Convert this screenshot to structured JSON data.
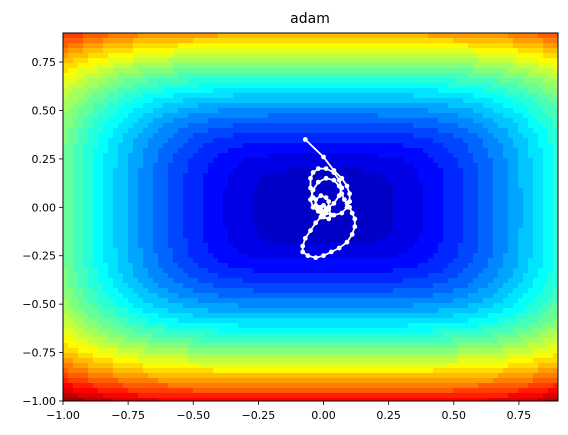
{
  "chart_data": {
    "type": "contour",
    "title": "adam",
    "xlabel": "",
    "ylabel": "",
    "xlim": [
      -1.0,
      0.9
    ],
    "ylim": [
      -1.0,
      0.9
    ],
    "xticks": [
      -1.0,
      -0.75,
      -0.5,
      -0.25,
      0.0,
      0.25,
      0.5,
      0.75
    ],
    "yticks": [
      -1.0,
      -0.75,
      -0.5,
      -0.25,
      0.0,
      0.25,
      0.5,
      0.75
    ],
    "xtick_labels": [
      "−1.00",
      "−0.75",
      "−0.50",
      "−0.25",
      "0.00",
      "0.25",
      "0.50",
      "0.75"
    ],
    "ytick_labels": [
      "−1.00",
      "−0.75",
      "−0.50",
      "−0.25",
      "0.00",
      "0.25",
      "0.50",
      "0.75"
    ],
    "colormap": "jet",
    "surface": "0.5*x^4 + 1.8*y^4 (qualitative loss surface)",
    "path_color": "#ffffff",
    "optimizer_path": {
      "x": [
        -0.07,
        0.0,
        0.04,
        0.07,
        0.09,
        0.1,
        0.1,
        0.09,
        0.07,
        0.04,
        0.01,
        -0.02,
        -0.04,
        -0.05,
        -0.05,
        -0.04,
        -0.02,
        0.01,
        0.04,
        0.06,
        0.07,
        0.06,
        0.04,
        0.01,
        -0.02,
        -0.04,
        -0.05,
        -0.04,
        -0.02,
        0.01,
        0.04,
        0.06,
        0.07,
        0.08,
        0.09,
        0.1,
        0.11,
        0.12,
        0.12,
        0.11,
        0.09,
        0.06,
        0.03,
        0.0,
        -0.03,
        -0.06,
        -0.08,
        -0.08,
        -0.07,
        -0.05,
        -0.03,
        -0.01,
        0.01,
        0.02,
        0.02,
        0.01,
        -0.01,
        -0.03,
        -0.03,
        -0.02,
        0.0,
        0.02,
        0.03,
        0.02,
        0.0,
        -0.01,
        -0.01,
        0.0,
        0.01
      ],
      "y": [
        0.35,
        0.26,
        0.19,
        0.15,
        0.11,
        0.07,
        0.03,
        0.0,
        -0.03,
        -0.04,
        -0.03,
        0.0,
        0.05,
        0.1,
        0.15,
        0.18,
        0.2,
        0.2,
        0.18,
        0.14,
        0.1,
        0.06,
        0.02,
        -0.01,
        -0.02,
        0.0,
        0.04,
        0.09,
        0.13,
        0.15,
        0.14,
        0.11,
        0.07,
        0.04,
        0.02,
        0.0,
        -0.03,
        -0.06,
        -0.1,
        -0.14,
        -0.18,
        -0.21,
        -0.23,
        -0.25,
        -0.26,
        -0.25,
        -0.23,
        -0.2,
        -0.16,
        -0.12,
        -0.08,
        -0.05,
        -0.02,
        0.0,
        0.03,
        0.05,
        0.06,
        0.04,
        0.01,
        -0.02,
        -0.05,
        -0.06,
        -0.04,
        -0.01,
        0.01,
        0.0,
        -0.02,
        -0.03,
        -0.02
      ]
    },
    "grid": false,
    "legend": "none"
  }
}
